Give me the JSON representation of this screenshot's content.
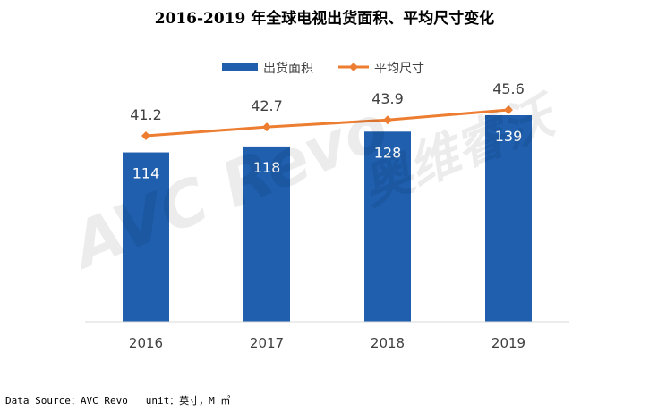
{
  "chart_data": {
    "type": "bar",
    "title": "2016-2019 年全球电视出货面积、平均尺寸变化",
    "categories": [
      "2016",
      "2017",
      "2018",
      "2019"
    ],
    "series": [
      {
        "name": "出货面积",
        "type": "bar",
        "values": [
          114,
          118,
          128,
          139
        ],
        "color": "#1F5FAE",
        "label_color": "#ffffff"
      },
      {
        "name": "平均尺寸",
        "type": "line",
        "values": [
          41.2,
          42.7,
          43.9,
          45.6
        ],
        "color": "#ED7D31",
        "label_color": "#404040"
      }
    ],
    "legend_position": "top",
    "grid": false,
    "axis_color": "#d9d9d9",
    "tick_color": "#404040"
  },
  "footer": {
    "source": "Data Source：AVC Revo   unit：英寸，M ㎡"
  },
  "watermark": {
    "logo_text": "AVC Revo",
    "brand_text": "奥维睿沃"
  }
}
